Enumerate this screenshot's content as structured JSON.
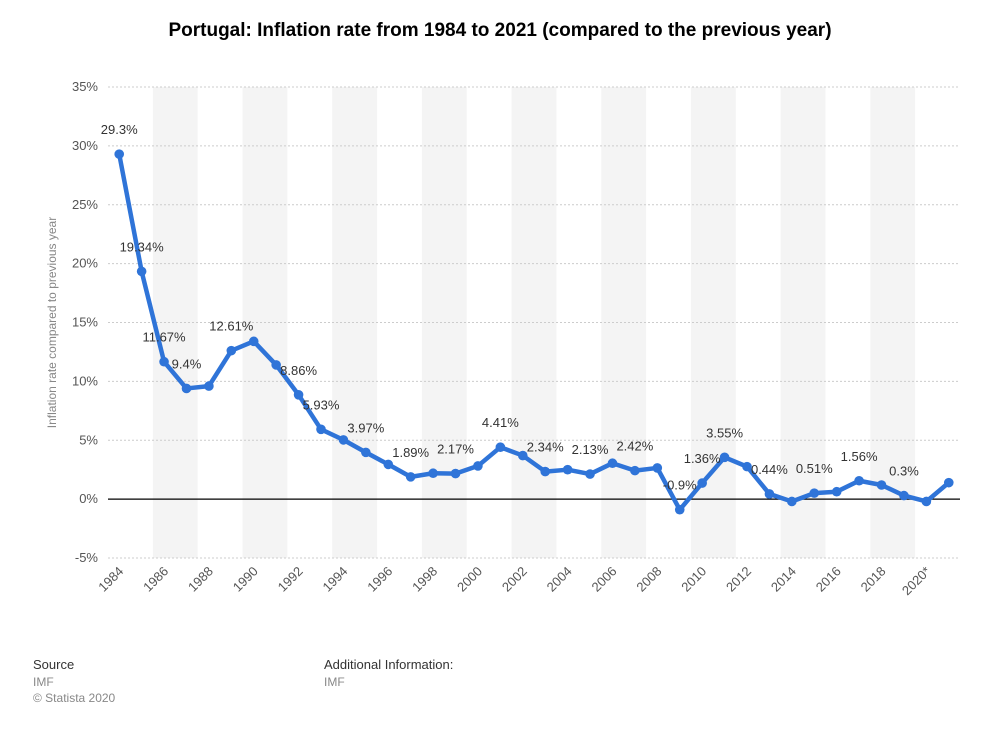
{
  "chart_data": {
    "type": "line",
    "title": "Portugal: Inflation rate from 1984 to 2021 (compared to the previous year)",
    "ylabel": "Inflation rate compared to previous year",
    "xlabel": "",
    "ylim": [
      -5,
      35
    ],
    "yticks": [
      -5,
      0,
      5,
      10,
      15,
      20,
      25,
      30,
      35
    ],
    "ytick_labels": [
      "-5%",
      "0%",
      "5%",
      "10%",
      "15%",
      "20%",
      "25%",
      "30%",
      "35%"
    ],
    "x": [
      "1984",
      "1985",
      "1986",
      "1987",
      "1988",
      "1989",
      "1990",
      "1991",
      "1992",
      "1993",
      "1994",
      "1995",
      "1996",
      "1997",
      "1998",
      "1999",
      "2000",
      "2001",
      "2002",
      "2003",
      "2004",
      "2005",
      "2006",
      "2007",
      "2008",
      "2009",
      "2010",
      "2011",
      "2012",
      "2013",
      "2014",
      "2015",
      "2016",
      "2017",
      "2018",
      "2019",
      "2020*",
      "2021*"
    ],
    "xtick_labels": [
      "1984",
      "1986",
      "1988",
      "1990",
      "1992",
      "1994",
      "1996",
      "1998",
      "2000",
      "2002",
      "2004",
      "2006",
      "2008",
      "2010",
      "2012",
      "2014",
      "2016",
      "2018",
      "2020*"
    ],
    "values": [
      29.3,
      19.34,
      11.67,
      9.4,
      9.6,
      12.61,
      13.4,
      11.4,
      8.86,
      5.93,
      5.03,
      3.97,
      2.95,
      1.89,
      2.2,
      2.17,
      2.82,
      4.41,
      3.7,
      2.34,
      2.5,
      2.13,
      3.05,
      2.42,
      2.65,
      -0.9,
      1.36,
      3.55,
      2.76,
      0.44,
      -0.2,
      0.51,
      0.63,
      1.56,
      1.2,
      0.3,
      -0.2,
      1.4
    ],
    "data_labels": [
      {
        "index": 0,
        "text": "29.3%"
      },
      {
        "index": 1,
        "text": "19.34%"
      },
      {
        "index": 2,
        "text": "11.67%"
      },
      {
        "index": 3,
        "text": "9.4%"
      },
      {
        "index": 5,
        "text": "12.61%"
      },
      {
        "index": 8,
        "text": "8.86%"
      },
      {
        "index": 9,
        "text": "5.93%"
      },
      {
        "index": 11,
        "text": "3.97%"
      },
      {
        "index": 13,
        "text": "1.89%"
      },
      {
        "index": 15,
        "text": "2.17%"
      },
      {
        "index": 17,
        "text": "4.41%"
      },
      {
        "index": 19,
        "text": "2.34%"
      },
      {
        "index": 21,
        "text": "2.13%"
      },
      {
        "index": 23,
        "text": "2.42%"
      },
      {
        "index": 25,
        "text": "-0.9%"
      },
      {
        "index": 26,
        "text": "1.36%"
      },
      {
        "index": 27,
        "text": "3.55%"
      },
      {
        "index": 29,
        "text": "0.44%"
      },
      {
        "index": 31,
        "text": "0.51%"
      },
      {
        "index": 33,
        "text": "1.56%"
      },
      {
        "index": 35,
        "text": "0.3%"
      }
    ],
    "grid": true,
    "legend": "none",
    "colors": {
      "line": "#2f74d8",
      "zero_line": "#000000",
      "grid": "#cccccc",
      "band": "#f4f4f4"
    }
  },
  "footer": {
    "source_heading": "Source",
    "source_value": "IMF",
    "copyright": "© Statista 2020",
    "additional_heading": "Additional Information:",
    "additional_value": "IMF"
  }
}
